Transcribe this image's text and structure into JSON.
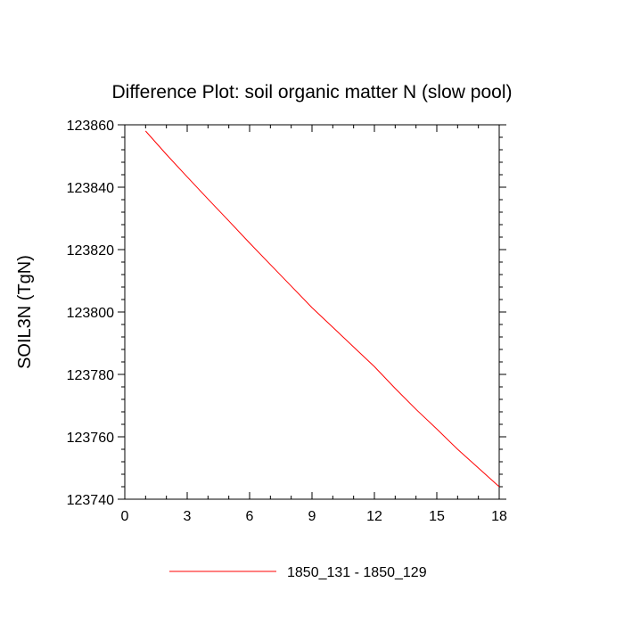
{
  "chart_data": {
    "type": "line",
    "title": "Difference Plot: soil organic matter N (slow pool)",
    "xlabel": "",
    "ylabel": "SOIL3N  (TgN)",
    "xlim": [
      0,
      18
    ],
    "ylim": [
      123740,
      123860
    ],
    "x_ticks": [
      0,
      3,
      6,
      9,
      12,
      15,
      18
    ],
    "y_ticks": [
      123740,
      123760,
      123780,
      123800,
      123820,
      123840,
      123860
    ],
    "x_tick_labels": [
      "0",
      "3",
      "6",
      "9",
      "12",
      "15",
      "18"
    ],
    "y_tick_labels": [
      "123740",
      "123760",
      "123780",
      "123800",
      "123820",
      "123840",
      "123860"
    ],
    "grid": false,
    "legend_position": "bottom",
    "series": [
      {
        "name": "1850_131 - 1850_129",
        "color": "#ff0000",
        "x": [
          1,
          2,
          3,
          4,
          5,
          6,
          7,
          8,
          9,
          10,
          11,
          12,
          13,
          14,
          15,
          16,
          17,
          18
        ],
        "y": [
          123858,
          123850.5,
          123843.3,
          123836.2,
          123829.2,
          123822.1,
          123815.2,
          123808.3,
          123801.4,
          123795.1,
          123788.8,
          123782.5,
          123775.5,
          123768.8,
          123762.5,
          123756,
          123750,
          123744
        ]
      }
    ]
  }
}
